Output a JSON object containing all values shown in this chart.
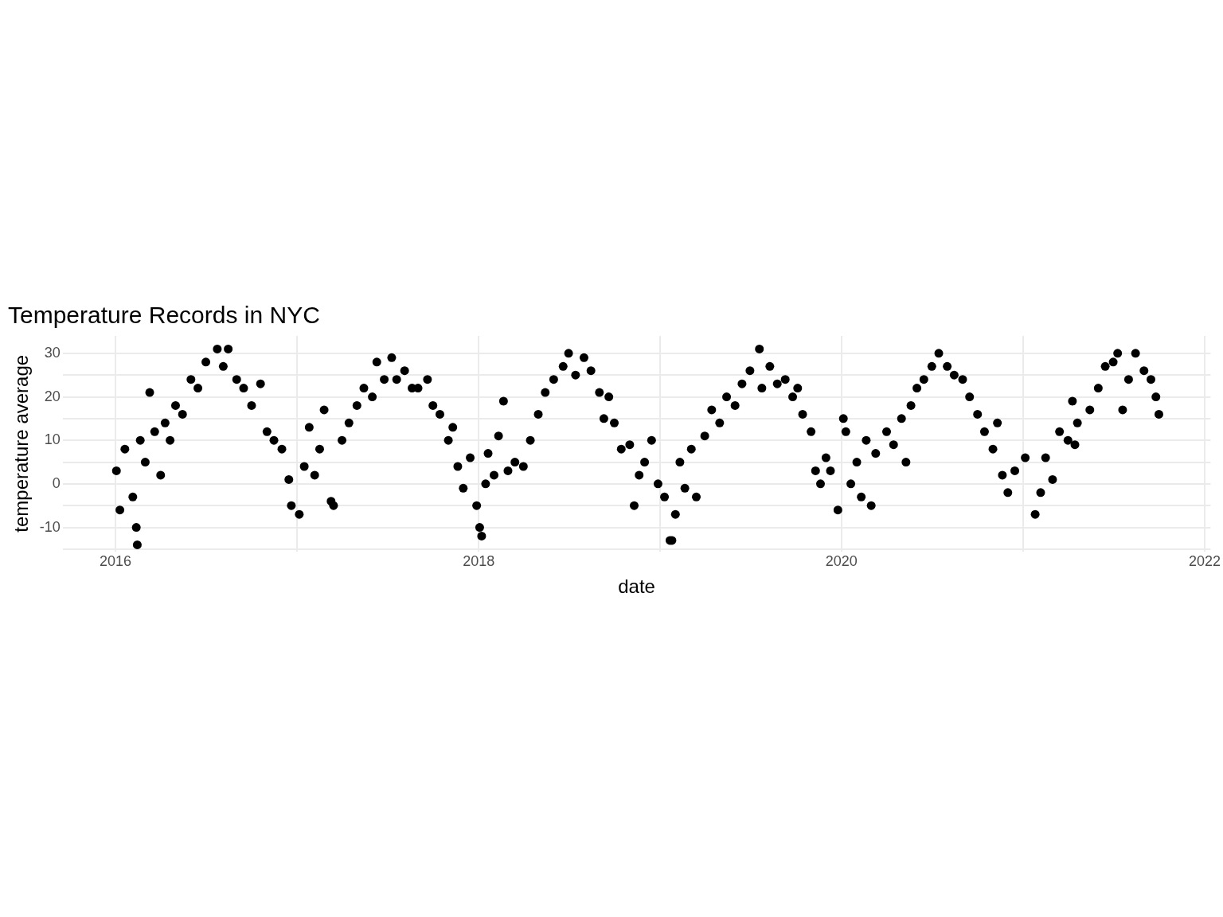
{
  "chart_data": {
    "type": "scatter",
    "title": "Temperature Records in NYC",
    "xlabel": "date",
    "ylabel": "temperature average",
    "xlim": [
      "2015-09-17",
      "2022-01-13"
    ],
    "ylim": [
      -15.5,
      34
    ],
    "xticks": [
      {
        "value": "2016",
        "label": "2016"
      },
      {
        "value": "2017",
        "label": null
      },
      {
        "value": "2018",
        "label": "2018"
      },
      {
        "value": "2019",
        "label": null
      },
      {
        "value": "2020",
        "label": "2020"
      },
      {
        "value": "2021",
        "label": null
      },
      {
        "value": "2022",
        "label": "2022"
      }
    ],
    "yticks": [
      {
        "value": -15,
        "label": null
      },
      -10,
      {
        "value": -5,
        "label": null
      },
      0,
      {
        "value": 5,
        "label": null
      },
      10,
      {
        "value": 15,
        "label": null
      },
      20,
      {
        "value": 25,
        "label": null
      },
      30
    ],
    "grid": true,
    "marker": "circle",
    "color": "#000000",
    "x": [
      "2016-01-03",
      "2016-01-10",
      "2016-01-20",
      "2016-02-05",
      "2016-02-12",
      "2016-02-14",
      "2016-02-20",
      "2016-03-01",
      "2016-03-10",
      "2016-03-20",
      "2016-04-01",
      "2016-04-10",
      "2016-04-20",
      "2016-05-01",
      "2016-05-15",
      "2016-06-01",
      "2016-06-15",
      "2016-07-01",
      "2016-07-24",
      "2016-08-05",
      "2016-08-15",
      "2016-09-01",
      "2016-09-15",
      "2016-10-01",
      "2016-10-19",
      "2016-11-01",
      "2016-11-15",
      "2016-12-01",
      "2016-12-15",
      "2016-12-20",
      "2017-01-05",
      "2017-01-15",
      "2017-01-25",
      "2017-02-05",
      "2017-02-15",
      "2017-02-24",
      "2017-03-10",
      "2017-03-15",
      "2017-04-01",
      "2017-04-15",
      "2017-05-01",
      "2017-05-15",
      "2017-06-01",
      "2017-06-10",
      "2017-06-25",
      "2017-07-10",
      "2017-07-20",
      "2017-08-05",
      "2017-08-20",
      "2017-09-01",
      "2017-09-20",
      "2017-10-01",
      "2017-10-15",
      "2017-11-01",
      "2017-11-10",
      "2017-11-20",
      "2017-12-01",
      "2017-12-15",
      "2017-12-28",
      "2018-01-03",
      "2018-01-07",
      "2018-01-15",
      "2018-01-20",
      "2018-02-01",
      "2018-02-10",
      "2018-02-20",
      "2018-03-01",
      "2018-03-15",
      "2018-04-01",
      "2018-04-15",
      "2018-05-01",
      "2018-05-15",
      "2018-06-01",
      "2018-06-20",
      "2018-07-01",
      "2018-07-15",
      "2018-08-01",
      "2018-08-15",
      "2018-09-01",
      "2018-09-10",
      "2018-09-20",
      "2018-10-01",
      "2018-10-15",
      "2018-11-01",
      "2018-11-10",
      "2018-11-20",
      "2018-12-01",
      "2018-12-15",
      "2018-12-28",
      "2019-01-10",
      "2019-01-21",
      "2019-01-25",
      "2019-02-01",
      "2019-02-10",
      "2019-02-20",
      "2019-03-05",
      "2019-03-15",
      "2019-04-01",
      "2019-04-15",
      "2019-05-01",
      "2019-05-15",
      "2019-06-01",
      "2019-06-15",
      "2019-07-01",
      "2019-07-20",
      "2019-07-25",
      "2019-08-10",
      "2019-08-25",
      "2019-09-10",
      "2019-09-25",
      "2019-10-05",
      "2019-10-15",
      "2019-11-01",
      "2019-11-10",
      "2019-11-20",
      "2019-12-01",
      "2019-12-10",
      "2019-12-25",
      "2020-01-05",
      "2020-01-10",
      "2020-01-20",
      "2020-02-01",
      "2020-02-10",
      "2020-02-20",
      "2020-03-01",
      "2020-03-10",
      "2020-04-01",
      "2020-04-15",
      "2020-05-01",
      "2020-05-10",
      "2020-05-20",
      "2020-06-01",
      "2020-06-15",
      "2020-07-01",
      "2020-07-15",
      "2020-08-01",
      "2020-08-15",
      "2020-09-01",
      "2020-09-15",
      "2020-10-01",
      "2020-10-15",
      "2020-11-01",
      "2020-11-10",
      "2020-11-20",
      "2020-12-01",
      "2020-12-15",
      "2021-01-05",
      "2021-01-25",
      "2021-02-05",
      "2021-02-15",
      "2021-03-01",
      "2021-03-15",
      "2021-04-01",
      "2021-04-10",
      "2021-04-15",
      "2021-04-20",
      "2021-05-15",
      "2021-06-01",
      "2021-06-15",
      "2021-07-01",
      "2021-07-10",
      "2021-07-20",
      "2021-08-01",
      "2021-08-15",
      "2021-09-01",
      "2021-09-15",
      "2021-09-25",
      "2021-10-01"
    ],
    "values": [
      3,
      -6,
      8,
      -3,
      -10,
      -14,
      10,
      5,
      21,
      12,
      2,
      14,
      10,
      18,
      16,
      24,
      22,
      28,
      31,
      27,
      31,
      24,
      22,
      18,
      23,
      12,
      10,
      8,
      1,
      -5,
      -7,
      4,
      13,
      2,
      8,
      17,
      -4,
      -5,
      10,
      14,
      18,
      22,
      20,
      28,
      24,
      29,
      24,
      26,
      22,
      22,
      24,
      18,
      16,
      10,
      13,
      4,
      -1,
      6,
      -5,
      -10,
      -12,
      0,
      7,
      2,
      11,
      19,
      3,
      5,
      4,
      10,
      16,
      21,
      24,
      27,
      30,
      25,
      29,
      26,
      21,
      15,
      20,
      14,
      8,
      9,
      -5,
      2,
      5,
      10,
      0,
      -3,
      -13,
      -13,
      -7,
      5,
      -1,
      8,
      -3,
      11,
      17,
      14,
      20,
      18,
      23,
      26,
      31,
      22,
      27,
      23,
      24,
      20,
      22,
      16,
      12,
      3,
      0,
      6,
      3,
      -6,
      15,
      12,
      0,
      5,
      -3,
      10,
      -5,
      7,
      12,
      9,
      15,
      5,
      18,
      22,
      24,
      27,
      30,
      27,
      25,
      24,
      20,
      16,
      12,
      8,
      14,
      2,
      -2,
      3,
      6,
      -7,
      -2,
      6,
      1,
      12,
      10,
      19,
      9,
      14,
      17,
      22,
      27,
      28,
      30,
      17,
      24,
      30,
      26,
      24,
      20,
      16
    ]
  }
}
